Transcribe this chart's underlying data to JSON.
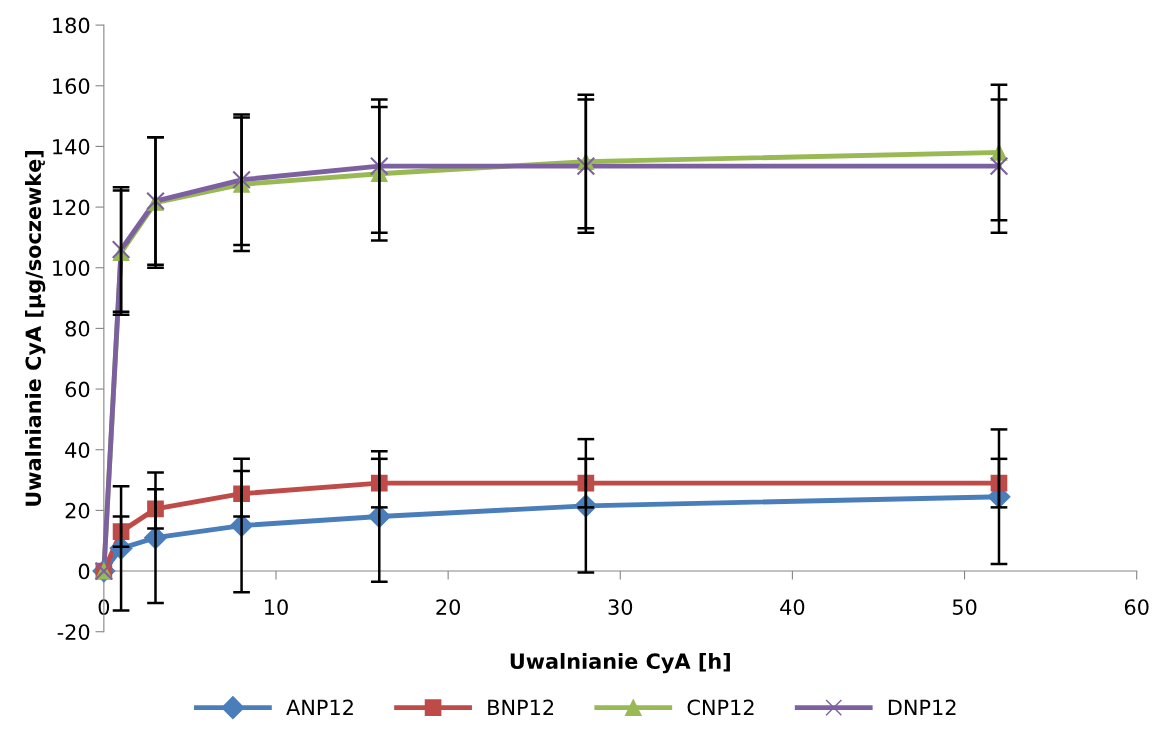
{
  "chart_data": {
    "type": "line",
    "xlabel": "Uwalnianie CyA [h]",
    "ylabel": "Uwalnianie CyA [µg/soczewkę]",
    "x": [
      0,
      1,
      3,
      8,
      16,
      28,
      52
    ],
    "xlim": [
      0,
      60
    ],
    "xticks": [
      0,
      10,
      20,
      30,
      40,
      50,
      60
    ],
    "ylim": [
      -20,
      180
    ],
    "yticks": [
      -20,
      0,
      20,
      40,
      60,
      80,
      100,
      120,
      140,
      160,
      180
    ],
    "grid": false,
    "legend": "bottom",
    "series": [
      {
        "name": "ANP12",
        "color": "#4a7ebb",
        "marker": "diamond",
        "values": [
          0,
          7.5,
          11,
          15,
          18,
          21.5,
          24.5
        ],
        "errors": [
          null,
          20.5,
          21.5,
          22,
          21.5,
          22,
          22.2
        ]
      },
      {
        "name": "BNP12",
        "color": "#be4b48",
        "marker": "square",
        "values": [
          0,
          13,
          20.5,
          25.5,
          29,
          29,
          29
        ],
        "errors": [
          null,
          5,
          6.5,
          7.5,
          8,
          8,
          8
        ]
      },
      {
        "name": "CNP12",
        "color": "#98b954",
        "marker": "triangle",
        "values": [
          0,
          105,
          121.5,
          127.5,
          131,
          135,
          138
        ],
        "errors": [
          null,
          20.5,
          21.5,
          22,
          22,
          22,
          22.3
        ]
      },
      {
        "name": "DNP12",
        "color": "#7d60a0",
        "marker": "cross",
        "values": [
          0,
          106,
          122,
          129,
          133.5,
          133.5,
          133.5
        ],
        "errors": [
          null,
          20.5,
          21,
          21.5,
          22,
          22,
          22
        ]
      }
    ]
  }
}
